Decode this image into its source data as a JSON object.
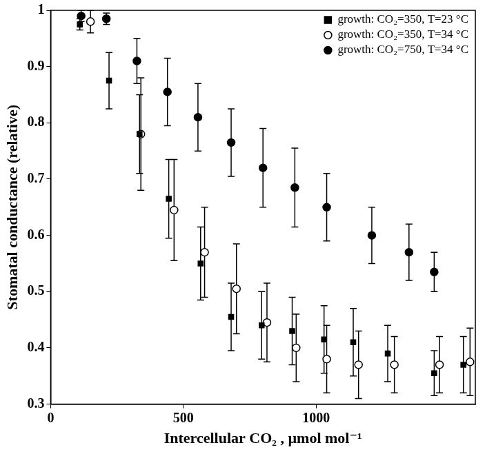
{
  "chart_data": {
    "type": "scatter",
    "x_label": "Intercellular CO₂ , µmol mol⁻¹",
    "y_label": "Stomatal conductance (relative)",
    "xlim": [
      0,
      1600
    ],
    "xticks": [
      0,
      500,
      1000
    ],
    "ylim": [
      0.3,
      1
    ],
    "yticks": [
      0.3,
      0.4,
      0.5,
      0.6,
      0.7,
      0.8,
      0.9,
      1
    ],
    "grid": false,
    "legend": "upper right",
    "series": [
      {
        "name": "growth: CO₂=350, T=23 °C",
        "color": "#000000",
        "marker": "square",
        "x": [
          110,
          220,
          335,
          445,
          565,
          680,
          795,
          910,
          1030,
          1140,
          1270,
          1445,
          1555
        ],
        "values": [
          0.975,
          0.875,
          0.78,
          0.665,
          0.55,
          0.455,
          0.44,
          0.43,
          0.415,
          0.41,
          0.39,
          0.355,
          0.37
        ],
        "errors": [
          0.01,
          0.05,
          0.07,
          0.07,
          0.065,
          0.06,
          0.06,
          0.06,
          0.06,
          0.06,
          0.05,
          0.04,
          0.05
        ]
      },
      {
        "name": "growth: CO₂=350, T=34 °C",
        "color": "#000000",
        "marker": "open_circle",
        "x": [
          150,
          340,
          465,
          580,
          700,
          815,
          925,
          1040,
          1160,
          1295,
          1465,
          1580
        ],
        "values": [
          0.98,
          0.78,
          0.645,
          0.57,
          0.505,
          0.445,
          0.4,
          0.38,
          0.37,
          0.37,
          0.37,
          0.375
        ],
        "errors": [
          0.02,
          0.1,
          0.09,
          0.08,
          0.08,
          0.07,
          0.06,
          0.06,
          0.06,
          0.05,
          0.05,
          0.06
        ]
      },
      {
        "name": "growth: CO₂=750, T=34 °C",
        "color": "#000000",
        "marker": "circle",
        "x": [
          115,
          210,
          325,
          440,
          555,
          680,
          800,
          920,
          1040,
          1210,
          1350,
          1445
        ],
        "values": [
          0.99,
          0.985,
          0.91,
          0.855,
          0.81,
          0.765,
          0.72,
          0.685,
          0.65,
          0.6,
          0.57,
          0.535
        ],
        "errors": [
          0.01,
          0.01,
          0.04,
          0.06,
          0.06,
          0.06,
          0.07,
          0.07,
          0.06,
          0.05,
          0.05,
          0.035
        ]
      }
    ]
  }
}
